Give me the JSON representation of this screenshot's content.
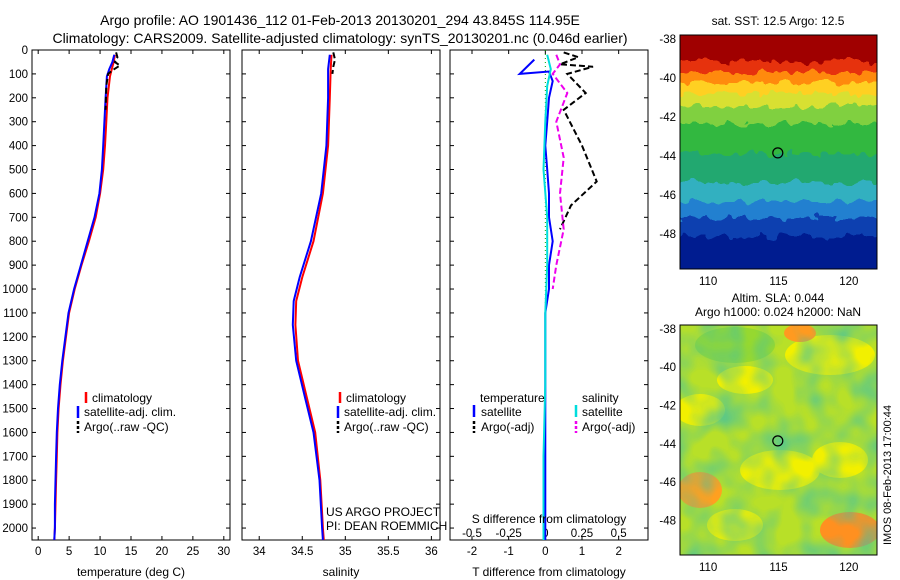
{
  "header": {
    "line1": "Argo profile: AO 1901436_112 01-Feb-2013 20130201_294 43.845S 114.95E",
    "line2": "Climatology: CARS2009. Satellite-adjusted climatology: synTS_20130201.nc (0.046d earlier)"
  },
  "colors": {
    "climatology": "#ff0000",
    "satellite": "#0000ff",
    "argo": "#000000",
    "sal_satellite": "#00dddd",
    "sal_argo": "#ee00ee"
  },
  "footer": {
    "project": "US ARGO PROJECT",
    "pi": "PI: DEAN ROEMMICH",
    "stamp": "IMOS 08-Feb-2013 17:00:44"
  },
  "chart_data": [
    {
      "type": "line",
      "xlabel": "temperature (deg C)",
      "ylabel": "",
      "xlim": [
        -1,
        31
      ],
      "ylim": [
        2050,
        0
      ],
      "x_ticks": [
        "0",
        "5",
        "10",
        "15",
        "20",
        "25",
        "30"
      ],
      "y_ticks": [
        "0",
        "100",
        "200",
        "300",
        "400",
        "500",
        "600",
        "700",
        "800",
        "900",
        "1000",
        "1100",
        "1200",
        "1300",
        "1400",
        "1500",
        "1600",
        "1700",
        "1800",
        "1900",
        "2000"
      ],
      "legend": [
        "climatology",
        "satellite-adj. clim.",
        "Argo(..raw -QC)"
      ],
      "series": [
        {
          "name": "climatology",
          "color": "#ff0000",
          "style": "solid",
          "points": [
            [
              12.4,
              20
            ],
            [
              12.2,
              50
            ],
            [
              11.9,
              80
            ],
            [
              11.6,
              110
            ],
            [
              11.2,
              200
            ],
            [
              11.0,
              300
            ],
            [
              10.8,
              400
            ],
            [
              10.5,
              500
            ],
            [
              10.0,
              600
            ],
            [
              9.3,
              700
            ],
            [
              8.2,
              800
            ],
            [
              7.0,
              900
            ],
            [
              5.9,
              1000
            ],
            [
              5.0,
              1100
            ],
            [
              4.5,
              1200
            ],
            [
              4.0,
              1300
            ],
            [
              3.6,
              1400
            ],
            [
              3.3,
              1500
            ],
            [
              3.1,
              1600
            ],
            [
              3.0,
              1700
            ],
            [
              2.9,
              1800
            ],
            [
              2.8,
              1900
            ],
            [
              2.7,
              2000
            ],
            [
              2.6,
              2050
            ]
          ]
        },
        {
          "name": "satellite-adj. clim.",
          "color": "#0000ff",
          "style": "solid",
          "points": [
            [
              12.3,
              20
            ],
            [
              12.0,
              50
            ],
            [
              11.5,
              80
            ],
            [
              11.1,
              110
            ],
            [
              10.9,
              200
            ],
            [
              10.7,
              300
            ],
            [
              10.5,
              400
            ],
            [
              10.3,
              500
            ],
            [
              9.9,
              600
            ],
            [
              9.1,
              700
            ],
            [
              8.0,
              800
            ],
            [
              6.9,
              900
            ],
            [
              5.8,
              1000
            ],
            [
              4.9,
              1100
            ],
            [
              4.4,
              1200
            ],
            [
              3.9,
              1300
            ],
            [
              3.5,
              1400
            ],
            [
              3.2,
              1500
            ],
            [
              3.0,
              1600
            ],
            [
              2.9,
              1700
            ],
            [
              2.8,
              1800
            ],
            [
              2.7,
              1900
            ],
            [
              2.7,
              2000
            ],
            [
              2.6,
              2050
            ]
          ]
        },
        {
          "name": "Argo(..raw -QC)",
          "color": "#000000",
          "style": "dashed",
          "points": [
            [
              12.6,
              10
            ],
            [
              12.8,
              30
            ],
            [
              12.4,
              50
            ],
            [
              13.2,
              65
            ],
            [
              12.0,
              85
            ],
            [
              11.3,
              100
            ],
            [
              11.0,
              150
            ],
            [
              10.9,
              250
            ]
          ]
        }
      ]
    },
    {
      "type": "line",
      "xlabel": "salinity",
      "ylabel": "",
      "xlim": [
        33.8,
        36.1
      ],
      "ylim": [
        2050,
        0
      ],
      "x_ticks": [
        "34",
        "34.5",
        "35",
        "35.5",
        "36"
      ],
      "legend": [
        "climatology",
        "satellite-adj. clim.",
        "Argo(..raw -QC)"
      ],
      "series": [
        {
          "name": "climatology",
          "color": "#ff0000",
          "style": "solid",
          "points": [
            [
              34.84,
              20
            ],
            [
              34.83,
              80
            ],
            [
              34.82,
              200
            ],
            [
              34.8,
              400
            ],
            [
              34.74,
              600
            ],
            [
              34.63,
              800
            ],
            [
              34.5,
              950
            ],
            [
              34.43,
              1050
            ],
            [
              34.42,
              1150
            ],
            [
              34.45,
              1300
            ],
            [
              34.55,
              1450
            ],
            [
              34.65,
              1600
            ],
            [
              34.71,
              1800
            ],
            [
              34.74,
              2000
            ],
            [
              34.75,
              2050
            ]
          ]
        },
        {
          "name": "satellite-adj. clim.",
          "color": "#0000ff",
          "style": "solid",
          "points": [
            [
              34.82,
              20
            ],
            [
              34.8,
              80
            ],
            [
              34.8,
              200
            ],
            [
              34.78,
              400
            ],
            [
              34.72,
              600
            ],
            [
              34.6,
              800
            ],
            [
              34.47,
              950
            ],
            [
              34.4,
              1050
            ],
            [
              34.39,
              1150
            ],
            [
              34.43,
              1300
            ],
            [
              34.53,
              1450
            ],
            [
              34.63,
              1600
            ],
            [
              34.7,
              1800
            ],
            [
              34.73,
              2000
            ],
            [
              34.74,
              2050
            ]
          ]
        },
        {
          "name": "Argo(..raw -QC)",
          "color": "#000000",
          "style": "dashed",
          "points": [
            [
              34.86,
              10
            ],
            [
              34.88,
              40
            ],
            [
              34.86,
              70
            ],
            [
              34.85,
              100
            ]
          ]
        }
      ]
    },
    {
      "type": "line",
      "xlabel": "T difference from climatology",
      "x2label": "S difference from climatology",
      "xlim": [
        -2.6,
        2.8
      ],
      "ylim": [
        2050,
        0
      ],
      "x_ticks": [
        "-2",
        "-1",
        "0",
        "1",
        "2"
      ],
      "x2_ticks": [
        "-0.5",
        "-0.25",
        "0",
        "0.25",
        "0.5"
      ],
      "legend_groups": {
        "temperature": [
          "satellite",
          "Argo(-adj)"
        ],
        "salinity": [
          "satellite",
          "Argo(-adj)"
        ]
      },
      "series": [
        {
          "name": "temperature satellite",
          "color": "#0000ff",
          "style": "solid",
          "points": [
            [
              -0.3,
              40
            ],
            [
              -0.7,
              100
            ],
            [
              0.1,
              90
            ],
            [
              0.2,
              130
            ],
            [
              0.1,
              200
            ],
            [
              0.05,
              300
            ],
            [
              0.0,
              400
            ],
            [
              0.05,
              500
            ],
            [
              0.1,
              600
            ],
            [
              0.1,
              700
            ],
            [
              0.2,
              800
            ],
            [
              0.1,
              900
            ],
            [
              0.1,
              1000
            ],
            [
              0.0,
              1100
            ],
            [
              0.0,
              1300
            ],
            [
              0.0,
              1600
            ],
            [
              0.0,
              2050
            ]
          ]
        },
        {
          "name": "temperature Argo(-adj)",
          "color": "#000000",
          "style": "dashed",
          "points": [
            [
              0.5,
              10
            ],
            [
              0.9,
              30
            ],
            [
              0.4,
              60
            ],
            [
              1.3,
              70
            ],
            [
              0.6,
              100
            ],
            [
              1.1,
              180
            ],
            [
              0.5,
              250
            ],
            [
              1.0,
              400
            ],
            [
              1.4,
              550
            ],
            [
              0.7,
              650
            ],
            [
              0.4,
              750
            ]
          ]
        },
        {
          "name": "salinity satellite",
          "color": "#00dddd",
          "style": "solid",
          "points": [
            [
              0.05,
              20
            ],
            [
              0.15,
              80
            ],
            [
              0.05,
              150
            ],
            [
              0.0,
              300
            ],
            [
              -0.05,
              500
            ],
            [
              0.05,
              700
            ],
            [
              0.05,
              900
            ],
            [
              0.0,
              1100
            ],
            [
              0.0,
              1400
            ],
            [
              -0.05,
              1700
            ],
            [
              -0.05,
              2050
            ]
          ]
        },
        {
          "name": "salinity Argo(-adj)",
          "color": "#ee00ee",
          "style": "dashed",
          "points": [
            [
              0.3,
              20
            ],
            [
              0.4,
              60
            ],
            [
              0.2,
              100
            ],
            [
              0.6,
              180
            ],
            [
              0.3,
              300
            ],
            [
              0.5,
              450
            ],
            [
              0.4,
              600
            ],
            [
              0.5,
              750
            ],
            [
              0.3,
              900
            ],
            [
              0.2,
              1000
            ]
          ]
        }
      ]
    },
    {
      "type": "heatmap",
      "title": "sat. SST: 12.5 Argo: 12.5",
      "xlim": [
        108,
        122
      ],
      "ylim": [
        -49.8,
        -37.8
      ],
      "x_ticks": [
        "110",
        "115",
        "120"
      ],
      "y_ticks": [
        "-38",
        "-40",
        "-42",
        "-44",
        "-46",
        "-48"
      ],
      "marker": [
        114.95,
        -43.845
      ]
    },
    {
      "type": "heatmap",
      "title": "Altim. SLA: 0.044",
      "subtitle": "Argo h1000: 0.024 h2000: NaN",
      "xlim": [
        108,
        122
      ],
      "ylim": [
        -49.8,
        -37.8
      ],
      "x_ticks": [
        "110",
        "115",
        "120"
      ],
      "y_ticks": [
        "-38",
        "-40",
        "-42",
        "-44",
        "-46",
        "-48"
      ],
      "marker": [
        114.95,
        -43.845
      ]
    }
  ]
}
